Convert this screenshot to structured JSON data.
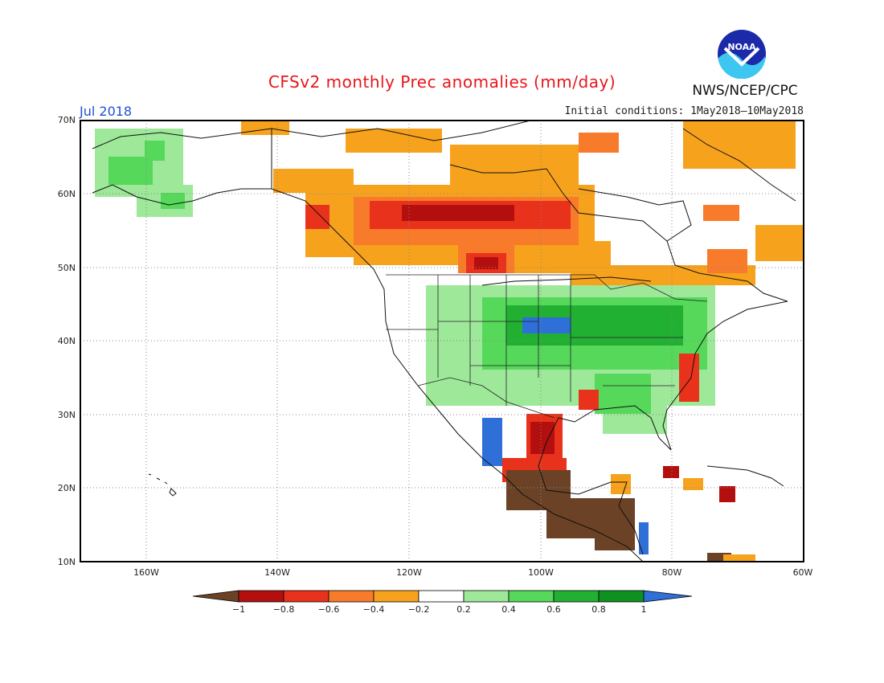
{
  "header": {
    "title": "CFSv2 monthly Prec anomalies (mm/day)",
    "agency": "NWS/NCEP/CPC",
    "month": "Jul 2018",
    "initial_conditions": "Initial conditions: 1May2018–10May2018",
    "logo_text": "NOAA"
  },
  "map": {
    "lat_labels": [
      "70N",
      "60N",
      "50N",
      "40N",
      "30N",
      "20N",
      "10N"
    ],
    "lon_labels": [
      "160W",
      "140W",
      "120W",
      "100W",
      "80W",
      "60W"
    ]
  },
  "colorbar": {
    "labels": [
      "−1",
      "−0.8",
      "−0.6",
      "−0.4",
      "−0.2",
      "0.2",
      "0.4",
      "0.6",
      "0.8",
      "1"
    ],
    "colors": [
      "#6b4226",
      "#b40f0f",
      "#e8321b",
      "#f77b2a",
      "#f7a21c",
      "#ffffff",
      "#9ee89a",
      "#56d85a",
      "#22b033",
      "#0f9120",
      "#2f6fd8"
    ]
  },
  "anomaly_regions": [
    {
      "name": "western-canada-dry",
      "category": "-0.6"
    },
    {
      "name": "alaska-wet",
      "category": "0.4"
    },
    {
      "name": "central-us-wet",
      "category": "0.6"
    },
    {
      "name": "mexico-dry",
      "category": "-1"
    },
    {
      "name": "northeast-canada-dry",
      "category": "-0.2"
    }
  ]
}
